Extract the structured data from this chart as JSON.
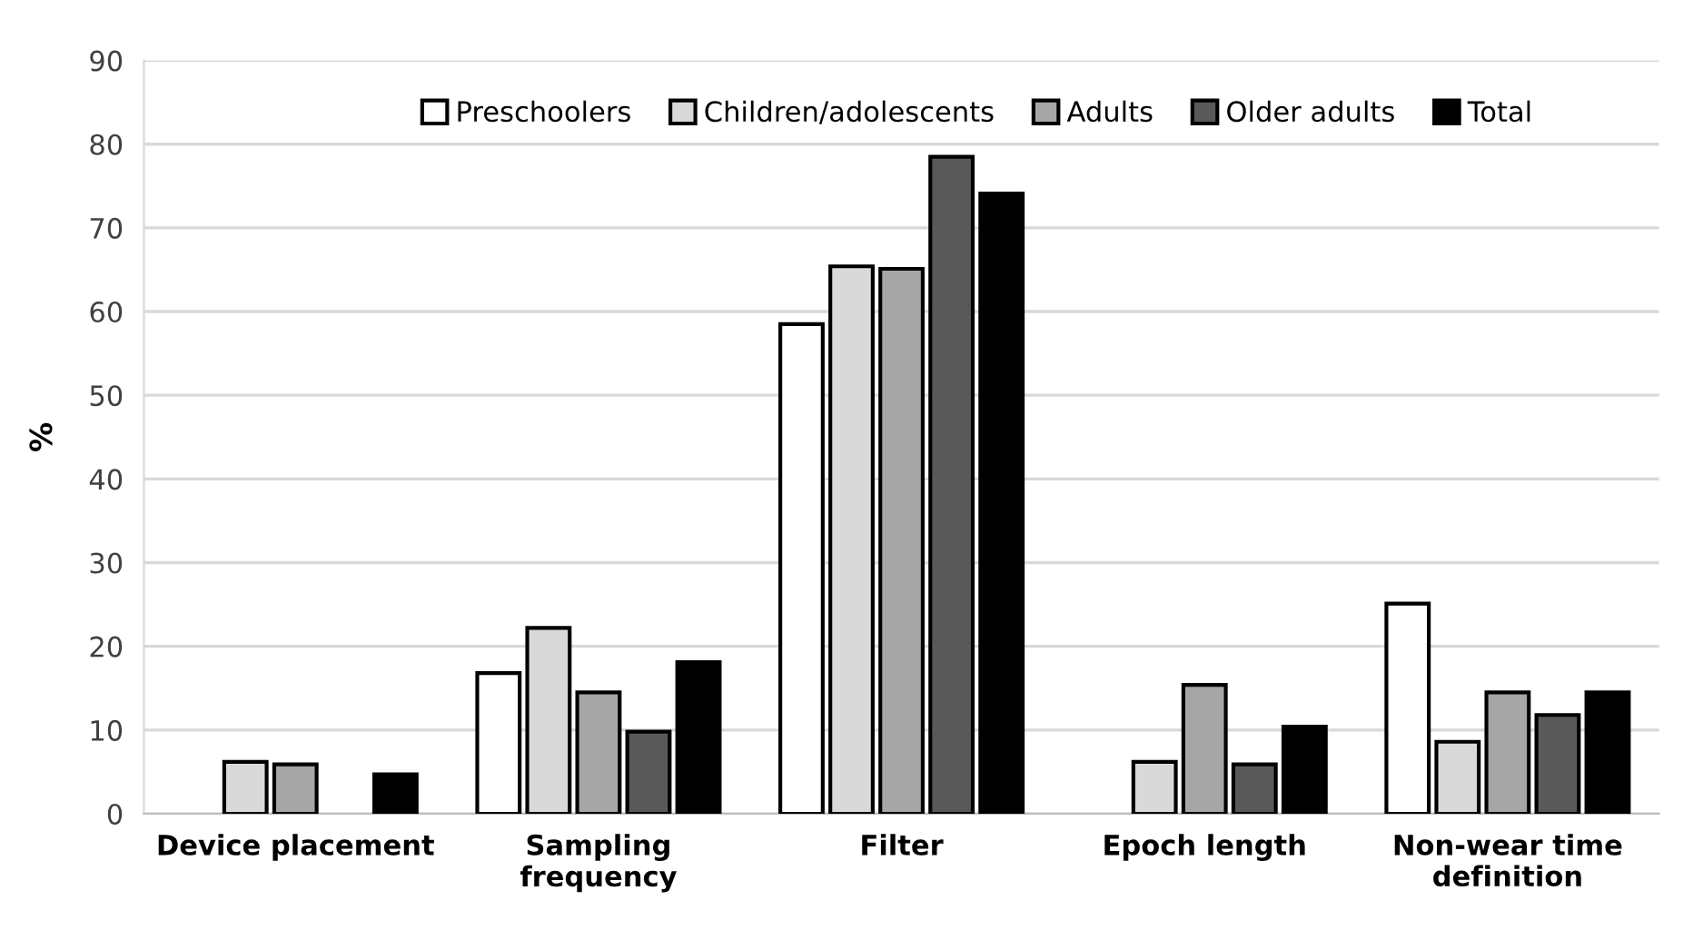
{
  "chart_data": {
    "type": "bar",
    "ylabel": "%",
    "categories": [
      "Device placement",
      "Sampling\nfrequency",
      "Filter",
      "Epoch length",
      "Non-wear time\ndefinition"
    ],
    "series": [
      {
        "name": "Preschoolers",
        "color": "#ffffff",
        "values": [
          null,
          16.8,
          58.5,
          null,
          25.1
        ]
      },
      {
        "name": "Children/adolescents",
        "color": "#d9d9d9",
        "values": [
          6.2,
          22.2,
          65.4,
          6.2,
          8.6
        ]
      },
      {
        "name": "Adults",
        "color": "#a6a6a6",
        "values": [
          5.9,
          14.5,
          65.1,
          15.4,
          14.5
        ]
      },
      {
        "name": "Older adults",
        "color": "#595959",
        "values": [
          null,
          9.8,
          78.5,
          5.9,
          11.8
        ]
      },
      {
        "name": "Total",
        "color": "#000000",
        "values": [
          4.7,
          18.1,
          74.1,
          10.4,
          14.5
        ]
      }
    ],
    "ylim": [
      0,
      90
    ],
    "yticks": [
      0,
      10,
      20,
      30,
      40,
      50,
      60,
      70,
      80,
      90
    ],
    "grid": "y",
    "legend": "top"
  }
}
